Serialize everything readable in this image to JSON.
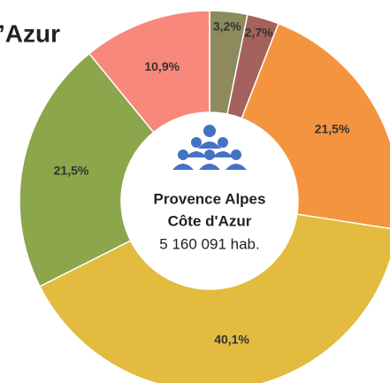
{
  "chart_data": {
    "type": "donut",
    "title": "’Azur",
    "categories": [
      "3,2%",
      "2,7%",
      "21,5%",
      "40,1%",
      "21,5%",
      "10,9%"
    ],
    "values": [
      3.2,
      2.7,
      21.5,
      40.1,
      21.5,
      10.9
    ],
    "value_labels": [
      "3,2%",
      "2,7%",
      "21,5%",
      "40,1%",
      "21,5%",
      "10,9%"
    ],
    "colors": [
      "#8d8b5e",
      "#a5615b",
      "#f5943f",
      "#e2bb3f",
      "#8ba64b",
      "#f7887b"
    ],
    "center_text": [
      "Provence Alpes",
      "Côte d'Azur",
      "5 160 091 hab."
    ]
  }
}
